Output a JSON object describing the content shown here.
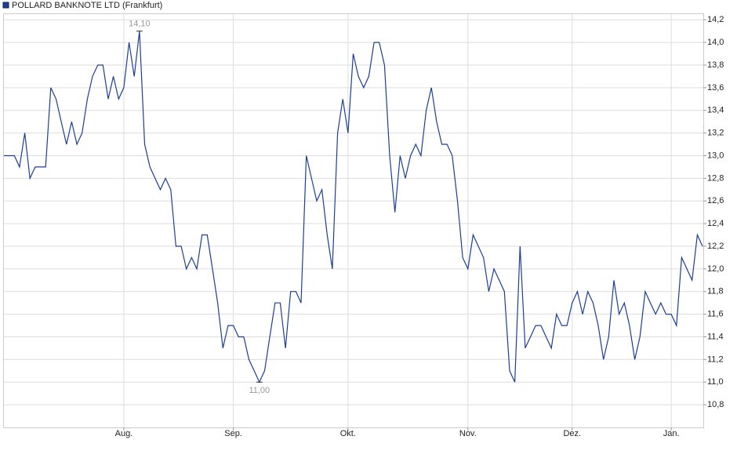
{
  "chart_data": {
    "type": "line",
    "title": "POLLARD BANKNOTE LTD (Frankfurt)",
    "categories": [
      null,
      null,
      null,
      null,
      null,
      null,
      null,
      null,
      null,
      null,
      null,
      null,
      null,
      null,
      null,
      null,
      null,
      null,
      null,
      null,
      null,
      null,
      null,
      "Aug.",
      null,
      null,
      null,
      null,
      null,
      null,
      null,
      null,
      null,
      null,
      null,
      null,
      null,
      null,
      null,
      null,
      null,
      null,
      null,
      null,
      "Sep.",
      null,
      null,
      null,
      null,
      null,
      null,
      null,
      null,
      null,
      null,
      null,
      null,
      null,
      null,
      null,
      null,
      null,
      null,
      null,
      null,
      null,
      "Okt.",
      null,
      null,
      null,
      null,
      null,
      null,
      null,
      null,
      null,
      null,
      null,
      null,
      null,
      null,
      null,
      null,
      null,
      null,
      null,
      null,
      null,
      null,
      "Nov.",
      null,
      null,
      null,
      null,
      null,
      null,
      null,
      null,
      null,
      null,
      null,
      null,
      null,
      null,
      null,
      null,
      null,
      null,
      null,
      "Dez.",
      null,
      null,
      null,
      null,
      null,
      null,
      null,
      null,
      null,
      null,
      null,
      null,
      null,
      null,
      null,
      null,
      null,
      null,
      "Jan.",
      null,
      null,
      null,
      null,
      null,
      null
    ],
    "series": [
      {
        "name": "POLLARD BANKNOTE LTD (Frankfurt)",
        "color": "#1c3f94",
        "values": [
          13.0,
          13.0,
          13.0,
          12.9,
          13.2,
          12.8,
          12.9,
          12.9,
          12.9,
          13.6,
          13.5,
          13.3,
          13.1,
          13.3,
          13.1,
          13.2,
          13.5,
          13.7,
          13.8,
          13.8,
          13.5,
          13.7,
          13.5,
          13.6,
          14.0,
          13.7,
          14.1,
          13.1,
          12.9,
          12.8,
          12.7,
          12.8,
          12.7,
          12.2,
          12.2,
          12.0,
          12.1,
          12.0,
          12.3,
          12.3,
          12.0,
          11.7,
          11.3,
          11.5,
          11.5,
          11.4,
          11.4,
          11.2,
          11.1,
          11.0,
          11.1,
          11.4,
          11.7,
          11.7,
          11.3,
          11.8,
          11.8,
          11.7,
          13.0,
          12.8,
          12.6,
          12.7,
          12.3,
          12.0,
          13.2,
          13.5,
          13.2,
          13.9,
          13.7,
          13.6,
          13.7,
          14.0,
          14.0,
          13.8,
          13.0,
          12.5,
          13.0,
          12.8,
          13.0,
          13.1,
          13.0,
          13.4,
          13.6,
          13.3,
          13.1,
          13.1,
          13.0,
          12.6,
          12.1,
          12.0,
          12.3,
          12.2,
          12.1,
          11.8,
          12.0,
          11.9,
          11.8,
          11.1,
          11.0,
          12.2,
          11.3,
          11.4,
          11.5,
          11.5,
          11.4,
          11.3,
          11.6,
          11.5,
          11.5,
          11.7,
          11.8,
          11.6,
          11.8,
          11.7,
          11.5,
          11.2,
          11.4,
          11.9,
          11.6,
          11.7,
          11.5,
          11.2,
          11.4,
          11.8,
          11.7,
          11.6,
          11.7,
          11.6,
          11.6,
          11.5,
          12.1,
          12.0,
          11.9,
          12.3,
          12.2
        ]
      }
    ],
    "annotations": [
      {
        "label": "14,10",
        "value": 14.1,
        "position": "above"
      },
      {
        "label": "11,00",
        "value": 11.0,
        "position": "below"
      }
    ],
    "ylim": [
      10.6,
      14.25
    ],
    "yticks": [
      {
        "value": 10.8,
        "label": "10,8"
      },
      {
        "value": 11.0,
        "label": "11,0"
      },
      {
        "value": 11.2,
        "label": "11,2"
      },
      {
        "value": 11.4,
        "label": "11,4"
      },
      {
        "value": 11.6,
        "label": "11,6"
      },
      {
        "value": 11.8,
        "label": "11,8"
      },
      {
        "value": 12.0,
        "label": "12,0"
      },
      {
        "value": 12.2,
        "label": "12,2"
      },
      {
        "value": 12.4,
        "label": "12,4"
      },
      {
        "value": 12.6,
        "label": "12,6"
      },
      {
        "value": 12.8,
        "label": "12,8"
      },
      {
        "value": 13.0,
        "label": "13,0"
      },
      {
        "value": 13.2,
        "label": "13,2"
      },
      {
        "value": 13.4,
        "label": "13,4"
      },
      {
        "value": 13.6,
        "label": "13,6"
      },
      {
        "value": 13.8,
        "label": "13,8"
      },
      {
        "value": 14.0,
        "label": "14,0"
      },
      {
        "value": 14.2,
        "label": "14,2"
      }
    ],
    "grid": true
  }
}
